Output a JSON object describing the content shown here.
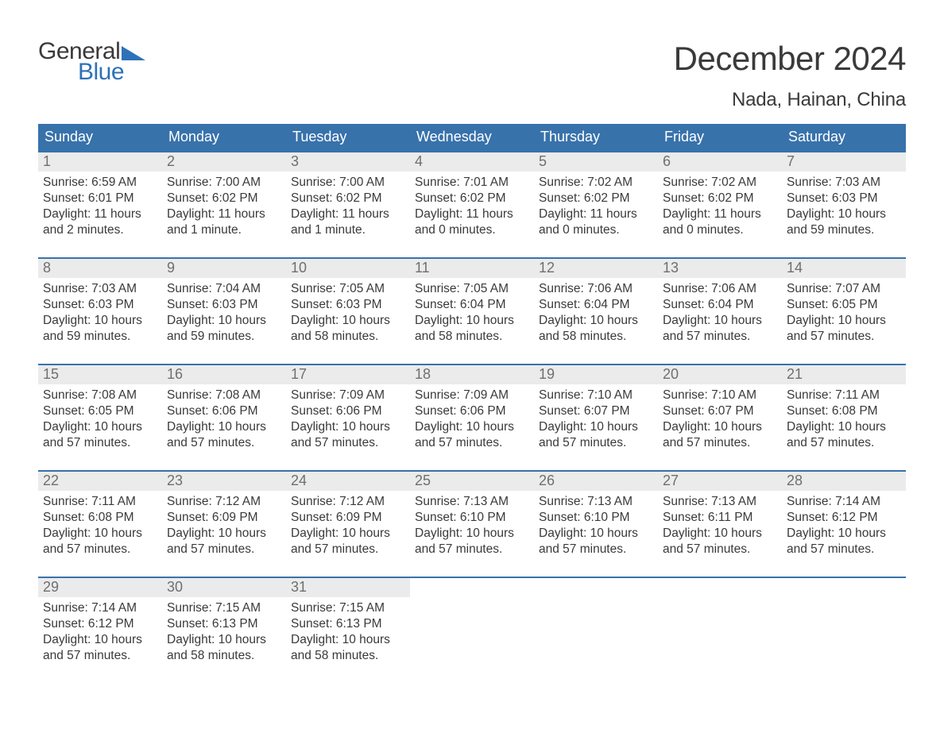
{
  "logo": {
    "text_general": "General",
    "text_blue": "Blue"
  },
  "title": "December 2024",
  "location": "Nada, Hainan, China",
  "colors": {
    "brand_blue": "#3872ab",
    "logo_blue": "#2d72b8",
    "text": "#3a3a3a",
    "day_num_bg": "#ebebeb",
    "day_num_color": "#6f6f6f",
    "background": "#ffffff"
  },
  "typography": {
    "title_fontsize": 42,
    "location_fontsize": 24,
    "weekday_fontsize": 18,
    "daynum_fontsize": 18,
    "body_fontsize": 15.5
  },
  "weekdays": [
    "Sunday",
    "Monday",
    "Tuesday",
    "Wednesday",
    "Thursday",
    "Friday",
    "Saturday"
  ],
  "labels": {
    "sunrise": "Sunrise: ",
    "sunset": "Sunset: ",
    "daylight": "Daylight: "
  },
  "weeks": [
    [
      {
        "day": "1",
        "sunrise": "6:59 AM",
        "sunset": "6:01 PM",
        "daylight": "11 hours and 2 minutes."
      },
      {
        "day": "2",
        "sunrise": "7:00 AM",
        "sunset": "6:02 PM",
        "daylight": "11 hours and 1 minute."
      },
      {
        "day": "3",
        "sunrise": "7:00 AM",
        "sunset": "6:02 PM",
        "daylight": "11 hours and 1 minute."
      },
      {
        "day": "4",
        "sunrise": "7:01 AM",
        "sunset": "6:02 PM",
        "daylight": "11 hours and 0 minutes."
      },
      {
        "day": "5",
        "sunrise": "7:02 AM",
        "sunset": "6:02 PM",
        "daylight": "11 hours and 0 minutes."
      },
      {
        "day": "6",
        "sunrise": "7:02 AM",
        "sunset": "6:02 PM",
        "daylight": "11 hours and 0 minutes."
      },
      {
        "day": "7",
        "sunrise": "7:03 AM",
        "sunset": "6:03 PM",
        "daylight": "10 hours and 59 minutes."
      }
    ],
    [
      {
        "day": "8",
        "sunrise": "7:03 AM",
        "sunset": "6:03 PM",
        "daylight": "10 hours and 59 minutes."
      },
      {
        "day": "9",
        "sunrise": "7:04 AM",
        "sunset": "6:03 PM",
        "daylight": "10 hours and 59 minutes."
      },
      {
        "day": "10",
        "sunrise": "7:05 AM",
        "sunset": "6:03 PM",
        "daylight": "10 hours and 58 minutes."
      },
      {
        "day": "11",
        "sunrise": "7:05 AM",
        "sunset": "6:04 PM",
        "daylight": "10 hours and 58 minutes."
      },
      {
        "day": "12",
        "sunrise": "7:06 AM",
        "sunset": "6:04 PM",
        "daylight": "10 hours and 58 minutes."
      },
      {
        "day": "13",
        "sunrise": "7:06 AM",
        "sunset": "6:04 PM",
        "daylight": "10 hours and 57 minutes."
      },
      {
        "day": "14",
        "sunrise": "7:07 AM",
        "sunset": "6:05 PM",
        "daylight": "10 hours and 57 minutes."
      }
    ],
    [
      {
        "day": "15",
        "sunrise": "7:08 AM",
        "sunset": "6:05 PM",
        "daylight": "10 hours and 57 minutes."
      },
      {
        "day": "16",
        "sunrise": "7:08 AM",
        "sunset": "6:06 PM",
        "daylight": "10 hours and 57 minutes."
      },
      {
        "day": "17",
        "sunrise": "7:09 AM",
        "sunset": "6:06 PM",
        "daylight": "10 hours and 57 minutes."
      },
      {
        "day": "18",
        "sunrise": "7:09 AM",
        "sunset": "6:06 PM",
        "daylight": "10 hours and 57 minutes."
      },
      {
        "day": "19",
        "sunrise": "7:10 AM",
        "sunset": "6:07 PM",
        "daylight": "10 hours and 57 minutes."
      },
      {
        "day": "20",
        "sunrise": "7:10 AM",
        "sunset": "6:07 PM",
        "daylight": "10 hours and 57 minutes."
      },
      {
        "day": "21",
        "sunrise": "7:11 AM",
        "sunset": "6:08 PM",
        "daylight": "10 hours and 57 minutes."
      }
    ],
    [
      {
        "day": "22",
        "sunrise": "7:11 AM",
        "sunset": "6:08 PM",
        "daylight": "10 hours and 57 minutes."
      },
      {
        "day": "23",
        "sunrise": "7:12 AM",
        "sunset": "6:09 PM",
        "daylight": "10 hours and 57 minutes."
      },
      {
        "day": "24",
        "sunrise": "7:12 AM",
        "sunset": "6:09 PM",
        "daylight": "10 hours and 57 minutes."
      },
      {
        "day": "25",
        "sunrise": "7:13 AM",
        "sunset": "6:10 PM",
        "daylight": "10 hours and 57 minutes."
      },
      {
        "day": "26",
        "sunrise": "7:13 AM",
        "sunset": "6:10 PM",
        "daylight": "10 hours and 57 minutes."
      },
      {
        "day": "27",
        "sunrise": "7:13 AM",
        "sunset": "6:11 PM",
        "daylight": "10 hours and 57 minutes."
      },
      {
        "day": "28",
        "sunrise": "7:14 AM",
        "sunset": "6:12 PM",
        "daylight": "10 hours and 57 minutes."
      }
    ],
    [
      {
        "day": "29",
        "sunrise": "7:14 AM",
        "sunset": "6:12 PM",
        "daylight": "10 hours and 57 minutes."
      },
      {
        "day": "30",
        "sunrise": "7:15 AM",
        "sunset": "6:13 PM",
        "daylight": "10 hours and 58 minutes."
      },
      {
        "day": "31",
        "sunrise": "7:15 AM",
        "sunset": "6:13 PM",
        "daylight": "10 hours and 58 minutes."
      },
      null,
      null,
      null,
      null
    ]
  ]
}
